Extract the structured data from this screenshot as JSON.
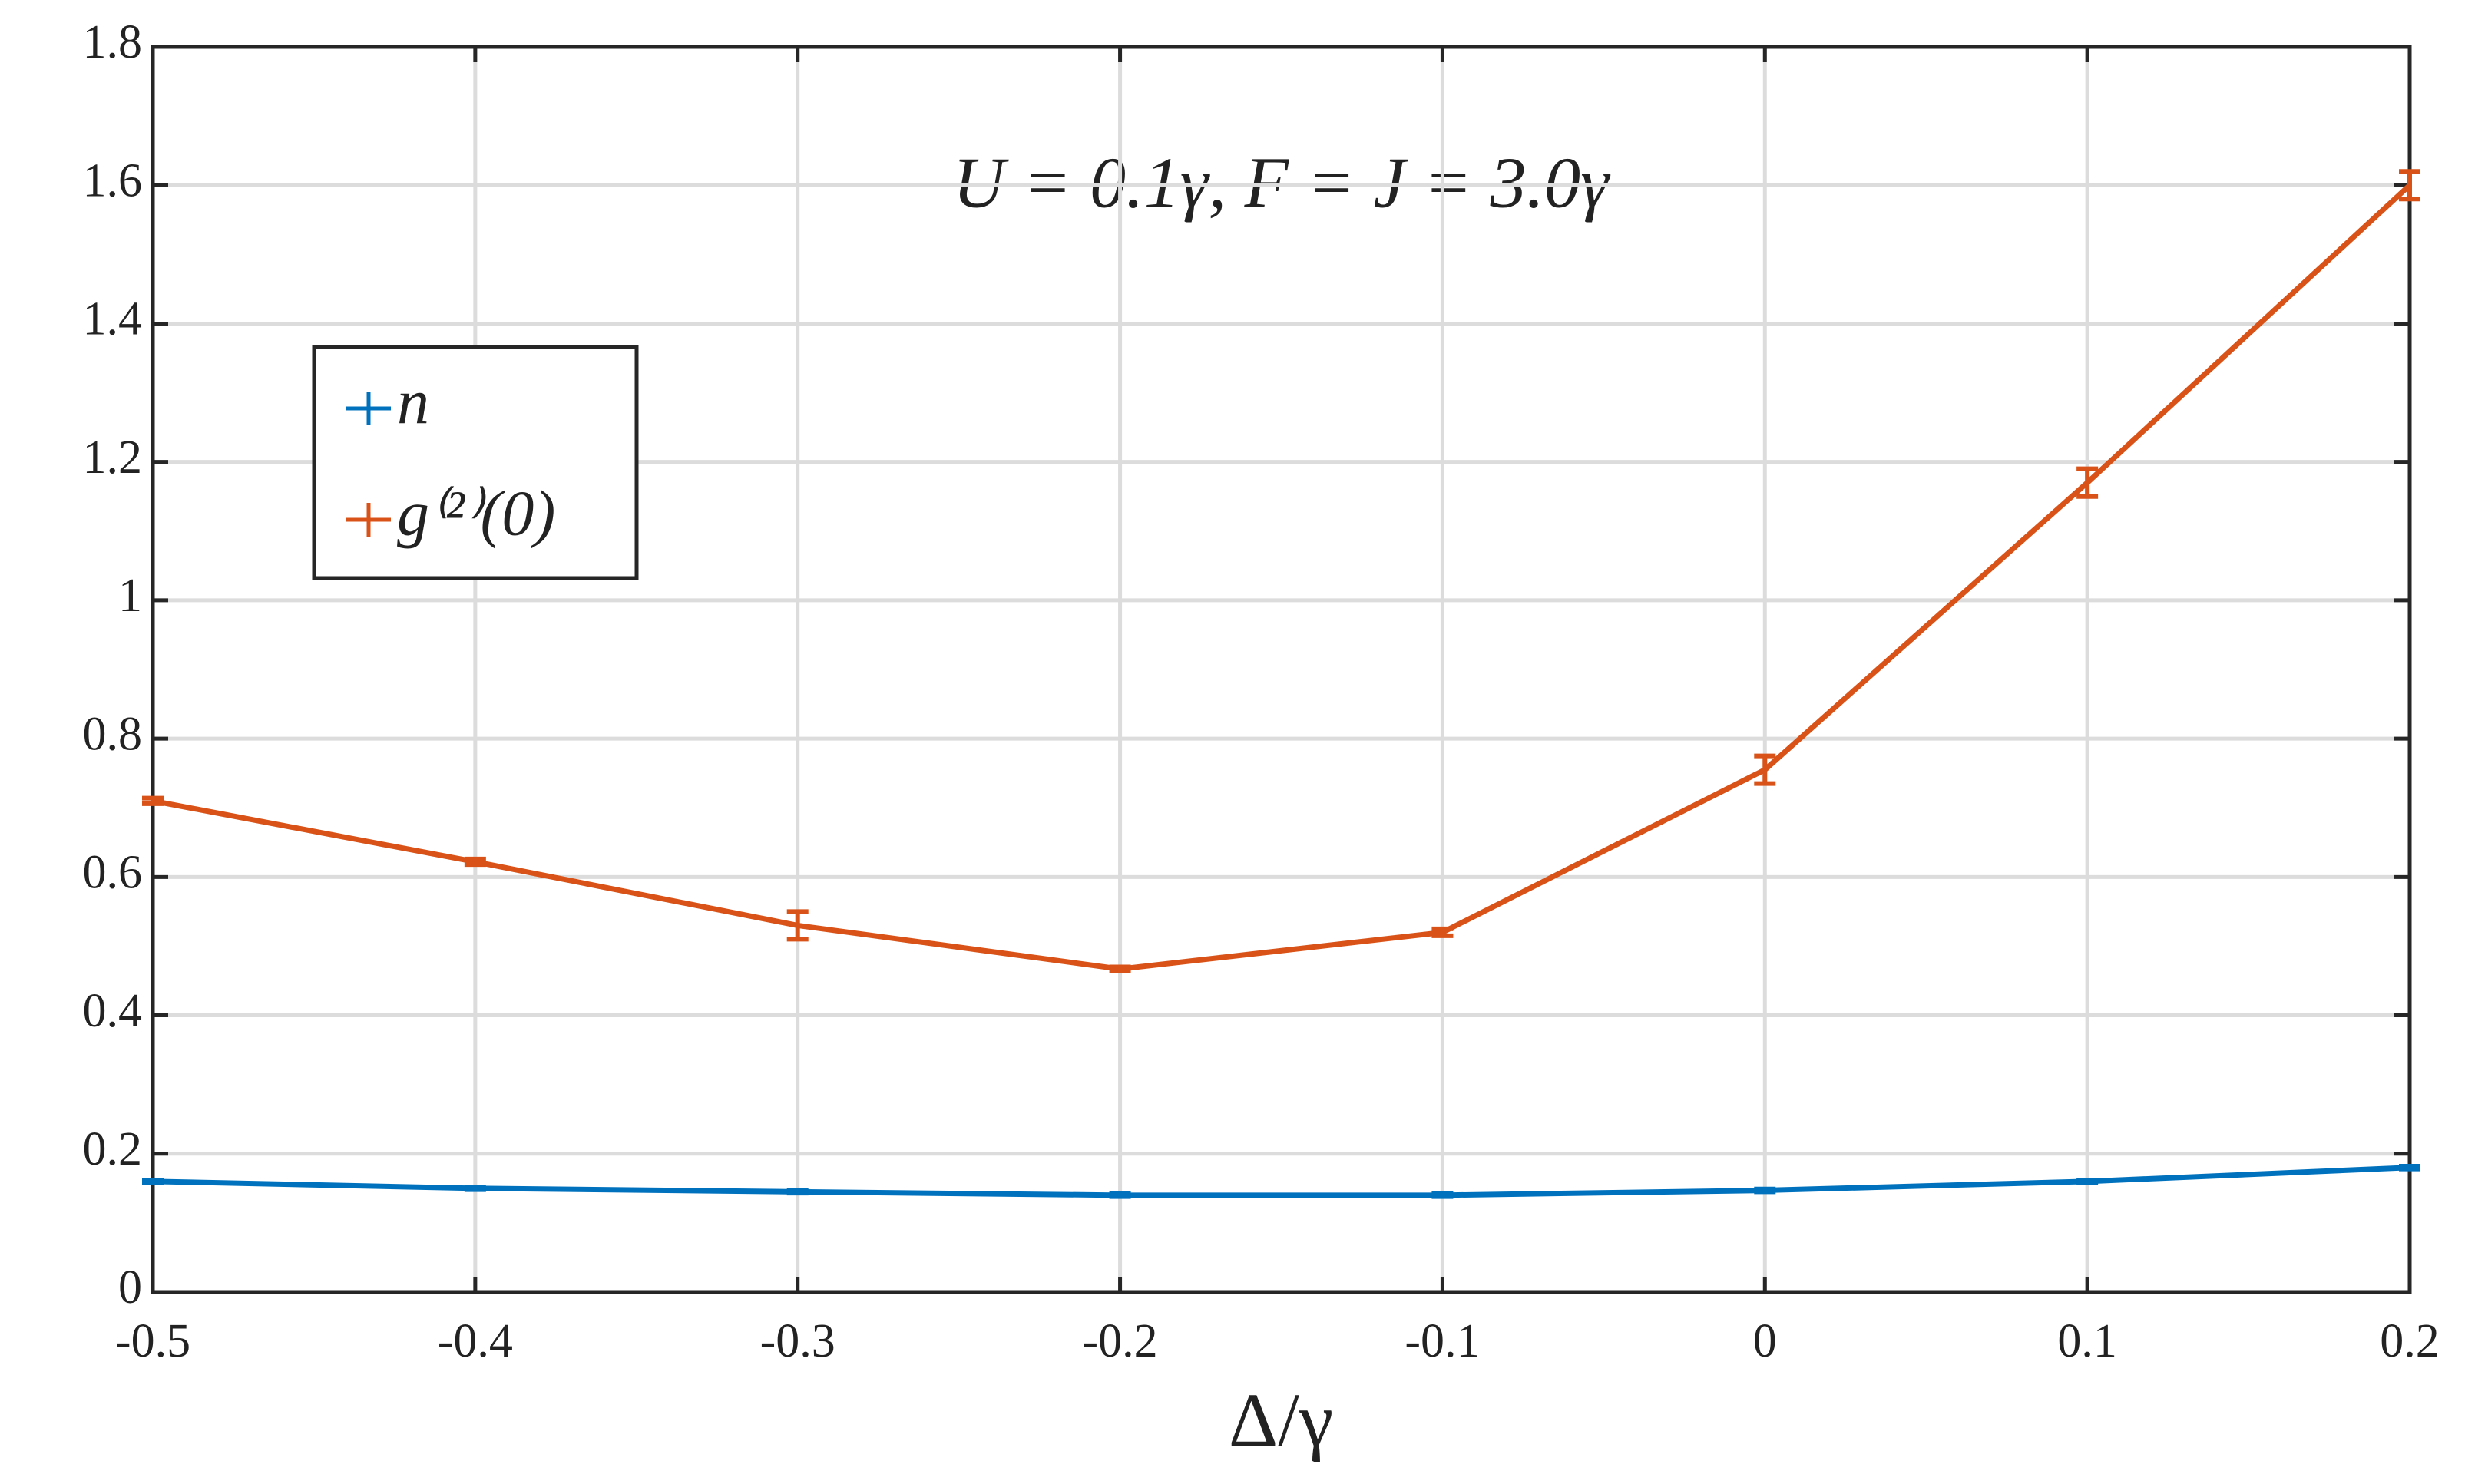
{
  "chart_data": {
    "type": "errorbar-line",
    "annotation": "U = 0.1γ, F = J = 3.0γ",
    "x_label": "Δ/γ",
    "x": [
      -0.5,
      -0.4,
      -0.3,
      -0.2,
      -0.1,
      0,
      0.1,
      0.2
    ],
    "series": [
      {
        "name": "n",
        "color": "#0072bd",
        "values": [
          0.16,
          0.15,
          0.145,
          0.14,
          0.14,
          0.147,
          0.16,
          0.18
        ],
        "errors": [
          0.002,
          0.002,
          0.002,
          0.002,
          0.002,
          0.002,
          0.002,
          0.002
        ]
      },
      {
        "name": "g⁽²⁾(0)",
        "color": "#d95319",
        "values": [
          0.71,
          0.622,
          0.53,
          0.467,
          0.52,
          0.755,
          1.17,
          1.6
        ],
        "errors": [
          0.004,
          0.004,
          0.02,
          0.003,
          0.005,
          0.02,
          0.02,
          0.02
        ]
      }
    ],
    "xlim": [
      -0.5,
      0.2
    ],
    "xticks": [
      -0.5,
      -0.4,
      -0.3,
      -0.2,
      -0.1,
      0,
      0.1,
      0.2
    ],
    "ylim": [
      0,
      1.8
    ],
    "yticks": [
      0,
      0.2,
      0.4,
      0.6,
      0.8,
      1,
      1.2,
      1.4,
      1.6,
      1.8
    ],
    "grid": true,
    "legend": "upper left"
  }
}
